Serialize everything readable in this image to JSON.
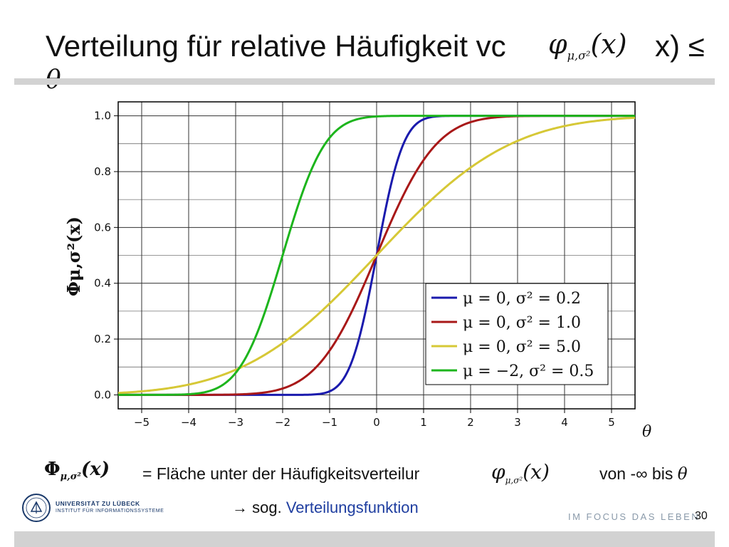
{
  "slide": {
    "title": "Verteilung für relative Häufigkeit vc",
    "title_tail": "x) ≤",
    "title_theta": "θ",
    "title_formula_main": "φ",
    "title_formula_sub": "μ,σ²",
    "title_formula_arg": "(x)",
    "theta_axis_label": "θ",
    "phi_main": "Φ",
    "phi_sub": "μ,σ²",
    "phi_arg": "(x)",
    "description": "= Fläche unter der Häufigkeitsverteilur",
    "small_phi_main": "φ",
    "small_phi_sub": "μ,σ²",
    "small_phi_arg": "(x)",
    "range_prefix": "von -∞ bis",
    "range_theta": "θ",
    "note_arrow": "→",
    "note_prefix": "sog.",
    "note_link": "Verteilungsfunktion",
    "logo_line1": "UNIVERSITÄT ZU LÜBECK",
    "logo_line2": "INSTITUT FÜR INFORMATIONSSYSTEME",
    "slogan": "IM FOCUS DAS LEBEN",
    "page_number": "30"
  },
  "chart_data": {
    "type": "line",
    "ylabel": "Φμ,σ²(x)",
    "xlim": [
      -5.5,
      5.5
    ],
    "ylim": [
      -0.05,
      1.05
    ],
    "x_ticks": [
      -5,
      -4,
      -3,
      -2,
      -1,
      0,
      1,
      2,
      3,
      4,
      5
    ],
    "x_tick_labels": [
      "−5",
      "−4",
      "−3",
      "−2",
      "−1",
      "0",
      "1",
      "2",
      "3",
      "4",
      "5"
    ],
    "y_ticks": [
      0.0,
      0.2,
      0.4,
      0.6,
      0.8,
      1.0
    ],
    "y_tick_labels": [
      "0.0",
      "0.2",
      "0.4",
      "0.6",
      "0.8",
      "1.0"
    ],
    "grid": true,
    "legend_position": "bottom-right",
    "series": [
      {
        "name": "μ =   0,  σ² = 0.2",
        "mu": 0,
        "sigma2": 0.2,
        "color": "#1a1aad"
      },
      {
        "name": "μ =   0,  σ² = 1.0",
        "mu": 0,
        "sigma2": 1.0,
        "color": "#a81818"
      },
      {
        "name": "μ =   0,  σ² = 5.0",
        "mu": 0,
        "sigma2": 5.0,
        "color": "#d6c836"
      },
      {
        "name": "μ = −2,  σ² = 0.5",
        "mu": -2,
        "sigma2": 0.5,
        "color": "#1db51d"
      }
    ]
  }
}
